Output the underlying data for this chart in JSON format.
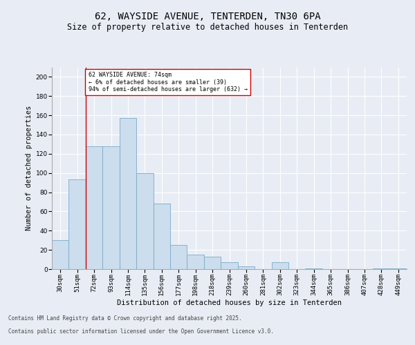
{
  "title_line1": "62, WAYSIDE AVENUE, TENTERDEN, TN30 6PA",
  "title_line2": "Size of property relative to detached houses in Tenterden",
  "xlabel": "Distribution of detached houses by size in Tenterden",
  "ylabel": "Number of detached properties",
  "categories": [
    "30sqm",
    "51sqm",
    "72sqm",
    "93sqm",
    "114sqm",
    "135sqm",
    "156sqm",
    "177sqm",
    "198sqm",
    "218sqm",
    "239sqm",
    "260sqm",
    "281sqm",
    "302sqm",
    "323sqm",
    "344sqm",
    "365sqm",
    "386sqm",
    "407sqm",
    "428sqm",
    "449sqm"
  ],
  "values": [
    30,
    93,
    128,
    128,
    157,
    100,
    68,
    25,
    15,
    13,
    7,
    3,
    0,
    7,
    0,
    1,
    0,
    0,
    0,
    1,
    1
  ],
  "bar_color": "#ccdded",
  "bar_edge_color": "#7aaac8",
  "vline_color": "#cc0000",
  "vline_x_idx": 1.5,
  "annotation_text": "62 WAYSIDE AVENUE: 74sqm\n← 6% of detached houses are smaller (39)\n94% of semi-detached houses are larger (632) →",
  "annotation_box_color": "#ffffff",
  "annotation_box_edge": "#cc0000",
  "ylim": [
    0,
    210
  ],
  "yticks": [
    0,
    20,
    40,
    60,
    80,
    100,
    120,
    140,
    160,
    180,
    200
  ],
  "background_color": "#e8edf5",
  "plot_background": "#e8edf5",
  "footer_line1": "Contains HM Land Registry data © Crown copyright and database right 2025.",
  "footer_line2": "Contains public sector information licensed under the Open Government Licence v3.0.",
  "title_fontsize": 10,
  "subtitle_fontsize": 8.5,
  "axis_label_fontsize": 7.5,
  "tick_fontsize": 6.5,
  "annotation_fontsize": 6,
  "footer_fontsize": 5.5
}
